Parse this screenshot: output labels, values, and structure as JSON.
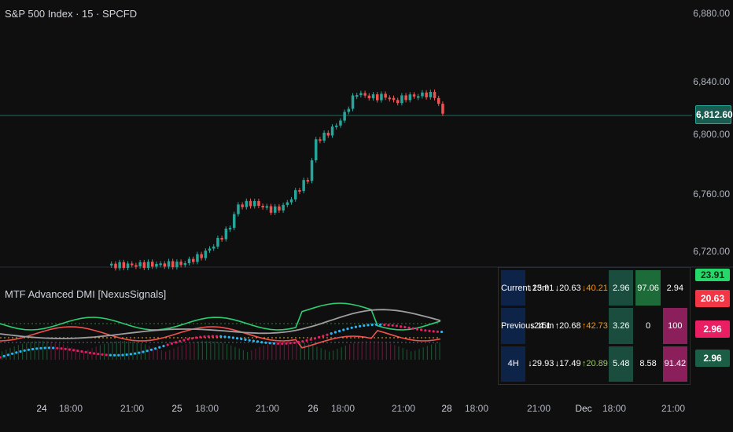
{
  "chart": {
    "title": "S&P 500 Index · 15 · SPCFD",
    "indicator_title": "MTF Advanced DMI [NexusSignals]",
    "current_price": "6,812.60",
    "price_axis": [
      "6,880.00",
      "6,840.00",
      "6,800.00",
      "6,760.00",
      "6,720.00"
    ],
    "time_axis": [
      {
        "label": "24",
        "bold": true
      },
      {
        "label": "18:00",
        "bold": false
      },
      {
        "label": "21:00",
        "bold": false
      },
      {
        "label": "25",
        "bold": true
      },
      {
        "label": "18:00",
        "bold": false
      },
      {
        "label": "21:00",
        "bold": false
      },
      {
        "label": "26",
        "bold": true
      },
      {
        "label": "18:00",
        "bold": false
      },
      {
        "label": "21:00",
        "bold": false
      },
      {
        "label": "28",
        "bold": true
      },
      {
        "label": "18:00",
        "bold": false
      },
      {
        "label": "21:00",
        "bold": false
      },
      {
        "label": "Dec",
        "bold": true
      },
      {
        "label": "18:00",
        "bold": false
      },
      {
        "label": "21:00",
        "bold": false
      }
    ],
    "indicator_tags": [
      {
        "value": "23.91",
        "color": "#26d86a"
      },
      {
        "value": "20.63",
        "color": "#f23645"
      },
      {
        "value": "2.96",
        "color": "#e91e63"
      },
      {
        "value": "2.96",
        "color": "#1b5e46"
      }
    ],
    "colors": {
      "up": "#26a69a",
      "down": "#ef5350",
      "price_line": "#1f6f5f",
      "background": "#0f0f10"
    }
  },
  "table": {
    "rows": [
      {
        "tf": "Current  15m",
        "plus": "↓23.91",
        "minus": "↓20.63",
        "adx": "↓40.21",
        "adx_color": "orange",
        "v1": "2.96",
        "v2": "97.06",
        "v3": "2.94"
      },
      {
        "tf": "Previous  15m",
        "plus": "↓24.1",
        "minus": "↑20.68",
        "adx": "↑42.73",
        "adx_color": "orange",
        "v1": "3.26",
        "v2": "0",
        "v3": "100"
      },
      {
        "tf": "4H",
        "plus": "↓29.93",
        "minus": "↓17.49",
        "adx": "↑20.89",
        "adx_color": "lime",
        "v1": "5.48",
        "v2": "8.58",
        "v3": "91.42"
      }
    ]
  }
}
